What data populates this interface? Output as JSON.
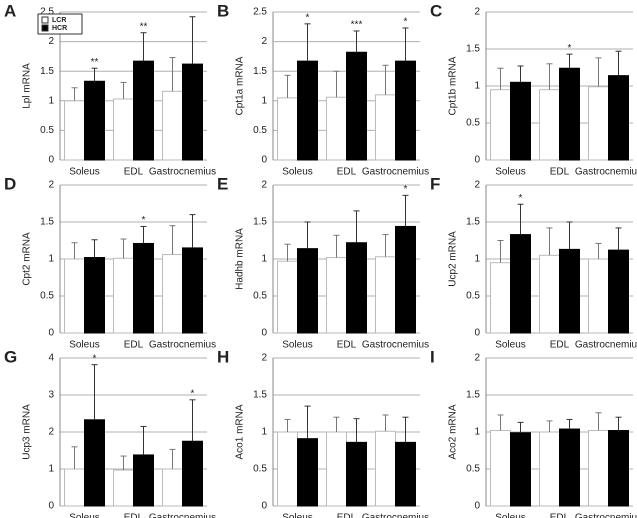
{
  "chart_data": [
    {
      "type": "bar",
      "panel": "A",
      "ylabel": "Lpl mRNA",
      "categories": [
        "Soleus",
        "EDL",
        "Gastrocnemius"
      ],
      "ylim": [
        0,
        2.5
      ],
      "yticks": [
        0,
        0.5,
        1,
        1.5,
        2,
        2.5
      ],
      "grid": true,
      "legend": "upper left",
      "series": [
        {
          "name": "LCR",
          "color": "#ffffff",
          "values": [
            1.0,
            1.03,
            1.16
          ],
          "errors": [
            0.22,
            0.28,
            0.57
          ]
        },
        {
          "name": "HCR",
          "color": "#000000",
          "values": [
            1.33,
            1.67,
            1.62
          ],
          "errors": [
            0.22,
            0.48,
            0.8
          ],
          "annotations": [
            "**",
            "**",
            null
          ]
        }
      ]
    },
    {
      "type": "bar",
      "panel": "B",
      "ylabel": "Cpt1a mRNA",
      "categories": [
        "Soleus",
        "EDL",
        "Gastrocnemius"
      ],
      "ylim": [
        0,
        2.5
      ],
      "yticks": [
        0,
        0.5,
        1,
        1.5,
        2,
        2.5
      ],
      "grid": true,
      "series": [
        {
          "color": "#ffffff",
          "values": [
            1.05,
            1.06,
            1.1
          ],
          "errors": [
            0.38,
            0.44,
            0.5
          ]
        },
        {
          "color": "#000000",
          "values": [
            1.67,
            1.82,
            1.67
          ],
          "errors": [
            0.63,
            0.36,
            0.56
          ],
          "annotations": [
            "*",
            "***",
            "*"
          ]
        }
      ]
    },
    {
      "type": "bar",
      "panel": "C",
      "ylabel": "Cpt1b mRNA",
      "categories": [
        "Soleus",
        "EDL",
        "Gastrocnemius"
      ],
      "ylim": [
        0,
        2
      ],
      "yticks": [
        0,
        0.5,
        1,
        1.5,
        2
      ],
      "grid": true,
      "series": [
        {
          "color": "#ffffff",
          "values": [
            0.95,
            0.95,
            0.99
          ],
          "errors": [
            0.29,
            0.35,
            0.39
          ]
        },
        {
          "color": "#000000",
          "values": [
            1.05,
            1.24,
            1.14
          ],
          "errors": [
            0.22,
            0.19,
            0.33
          ],
          "annotations": [
            null,
            "*",
            null
          ]
        }
      ]
    },
    {
      "type": "bar",
      "panel": "D",
      "ylabel": "Cpt2 mRNA",
      "categories": [
        "Soleus",
        "EDL",
        "Gastrocnemius"
      ],
      "ylim": [
        0,
        2
      ],
      "yticks": [
        0,
        0.5,
        1,
        1.5,
        2
      ],
      "grid": true,
      "series": [
        {
          "color": "#ffffff",
          "values": [
            1.0,
            1.01,
            1.06
          ],
          "errors": [
            0.22,
            0.26,
            0.39
          ]
        },
        {
          "color": "#000000",
          "values": [
            1.02,
            1.21,
            1.15
          ],
          "errors": [
            0.24,
            0.23,
            0.45
          ],
          "annotations": [
            null,
            "*",
            null
          ]
        }
      ]
    },
    {
      "type": "bar",
      "panel": "E",
      "ylabel": "Hadhb mRNA",
      "categories": [
        "Soleus",
        "EDL",
        "Gastrocnemius"
      ],
      "ylim": [
        0,
        2
      ],
      "yticks": [
        0,
        0.5,
        1,
        1.5,
        2
      ],
      "grid": true,
      "series": [
        {
          "color": "#ffffff",
          "values": [
            0.97,
            1.02,
            1.03
          ],
          "errors": [
            0.23,
            0.3,
            0.3
          ]
        },
        {
          "color": "#000000",
          "values": [
            1.14,
            1.22,
            1.44
          ],
          "errors": [
            0.36,
            0.43,
            0.42
          ],
          "annotations": [
            null,
            null,
            "*"
          ]
        }
      ]
    },
    {
      "type": "bar",
      "panel": "F",
      "ylabel": "Ucp2 mRNA",
      "categories": [
        "Soleus",
        "EDL",
        "Gastrocnemius"
      ],
      "ylim": [
        0,
        2
      ],
      "yticks": [
        0,
        0.5,
        1,
        1.5,
        2
      ],
      "grid": true,
      "series": [
        {
          "color": "#ffffff",
          "values": [
            0.95,
            1.05,
            1.0
          ],
          "errors": [
            0.3,
            0.37,
            0.21
          ]
        },
        {
          "color": "#000000",
          "values": [
            1.33,
            1.13,
            1.12
          ],
          "errors": [
            0.41,
            0.37,
            0.3
          ],
          "annotations": [
            "*",
            null,
            null
          ]
        }
      ]
    },
    {
      "type": "bar",
      "panel": "G",
      "ylabel": "Ucp3 mRNA",
      "categories": [
        "Soleus",
        "EDL",
        "Gastrocnemius"
      ],
      "ylim": [
        0,
        4
      ],
      "yticks": [
        0,
        1,
        2,
        3,
        4
      ],
      "grid": true,
      "series": [
        {
          "color": "#ffffff",
          "values": [
            1.0,
            0.97,
            1.0
          ],
          "errors": [
            0.6,
            0.38,
            0.53
          ]
        },
        {
          "color": "#000000",
          "values": [
            2.33,
            1.38,
            1.75
          ],
          "errors": [
            1.49,
            0.77,
            1.12
          ],
          "annotations": [
            "*",
            null,
            "*"
          ]
        }
      ]
    },
    {
      "type": "bar",
      "panel": "H",
      "ylabel": "Aco1 mRNA",
      "categories": [
        "Soleus",
        "EDL",
        "Gastrocnemius"
      ],
      "ylim": [
        0,
        2
      ],
      "yticks": [
        0,
        0.5,
        1,
        1.5,
        2
      ],
      "grid": true,
      "series": [
        {
          "color": "#ffffff",
          "values": [
            1.0,
            1.0,
            1.01
          ],
          "errors": [
            0.17,
            0.2,
            0.22
          ]
        },
        {
          "color": "#000000",
          "values": [
            0.91,
            0.86,
            0.86
          ],
          "errors": [
            0.44,
            0.32,
            0.34
          ]
        }
      ]
    },
    {
      "type": "bar",
      "panel": "I",
      "ylabel": "Aco2 mRNA",
      "categories": [
        "Soleus",
        "EDL",
        "Gastrocnemius"
      ],
      "ylim": [
        0,
        2
      ],
      "yticks": [
        0,
        0.5,
        1,
        1.5,
        2
      ],
      "grid": true,
      "series": [
        {
          "color": "#ffffff",
          "values": [
            1.02,
            1.0,
            1.02
          ],
          "errors": [
            0.21,
            0.15,
            0.24
          ]
        },
        {
          "color": "#000000",
          "values": [
            0.99,
            1.04,
            1.02
          ],
          "errors": [
            0.14,
            0.13,
            0.18
          ]
        }
      ]
    }
  ]
}
